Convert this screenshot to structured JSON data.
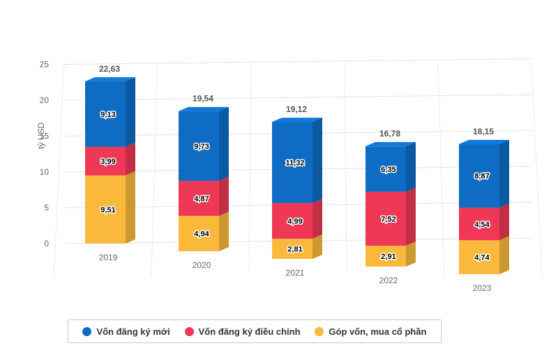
{
  "chart_data": {
    "type": "bar",
    "stacked": true,
    "three_d": true,
    "ylabel": "tỷ USD",
    "ylim": [
      0,
      25
    ],
    "yticks": [
      0,
      5,
      10,
      15,
      20,
      25
    ],
    "grid": true,
    "legend_position": "bottom",
    "categories": [
      "2019",
      "2020",
      "2021",
      "2022",
      "2023"
    ],
    "totals": [
      "22,63",
      "19,54",
      "19,12",
      "16,78",
      "18,15"
    ],
    "series": [
      {
        "name": "Góp vốn, mua cổ phần",
        "color": "#fbb93b",
        "values": [
          9.51,
          4.94,
          2.81,
          2.91,
          4.74
        ],
        "labels": [
          "9,51",
          "4,94",
          "2,81",
          "2,91",
          "4,74"
        ]
      },
      {
        "name": "Vốn đăng ký điều chỉnh",
        "color": "#ee3856",
        "values": [
          3.99,
          4.87,
          4.99,
          7.52,
          4.54
        ],
        "labels": [
          "3,99",
          "4,87",
          "4,99",
          "7,52",
          "4,54"
        ]
      },
      {
        "name": "Vốn đăng ký mới",
        "color": "#0e6cc4",
        "values": [
          9.13,
          9.73,
          11.32,
          6.35,
          8.87
        ],
        "labels": [
          "9,13",
          "9,73",
          "11,32",
          "6,35",
          "8,87"
        ]
      }
    ]
  },
  "legend": {
    "items": [
      {
        "label": "Vốn đăng ký mới",
        "color": "#0e6cc4"
      },
      {
        "label": "Vốn đăng ký điều chỉnh",
        "color": "#ee3856"
      },
      {
        "label": "Góp vốn, mua cổ phần",
        "color": "#fbb93b"
      }
    ]
  }
}
